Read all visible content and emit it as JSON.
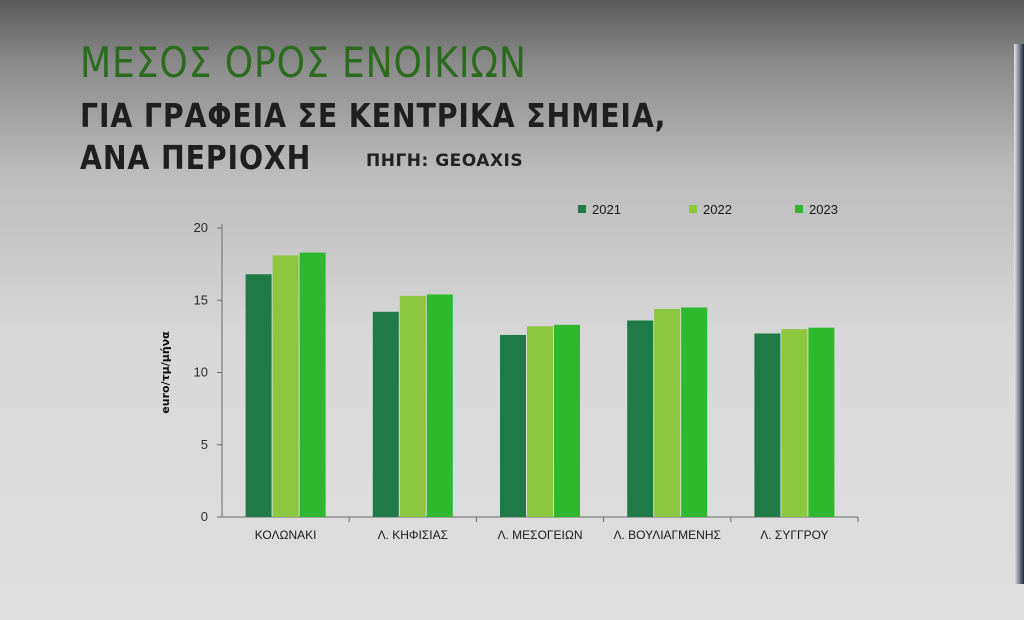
{
  "colors": {
    "c2021": "#1f7a48",
    "c2022": "#8dc63f",
    "c2023": "#2eb82e",
    "title": "#2b6b1e"
  },
  "title_lines": {
    "main": "ΜΕΣΟΣ ΟΡΟΣ ΕΝΟΙΚΙΩΝ",
    "line2": "ΓΙΑ ΓΡΑΦΕΙΑ ΣΕ ΚΕΝΤΡΙΚΑ ΣΗΜΕΙΑ,",
    "line3": "ΑΝΑ ΠΕΡΙΟΧΗ"
  },
  "source": "ΠΗΓΗ: GEOAXIS",
  "chart_data": {
    "type": "bar",
    "title": "ΜΕΣΟΣ ΟΡΟΣ ΕΝΟΙΚΙΩΝ ΓΙΑ ΓΡΑΦΕΙΑ ΣΕ ΚΕΝΤΡΙΚΑ ΣΗΜΕΙΑ, ΑΝΑ ΠΕΡΙΟΧΗ",
    "xlabel": "",
    "ylabel": "euro/τμ/μήνα",
    "ylim": [
      0,
      20
    ],
    "yticks": [
      0,
      5,
      10,
      15,
      20
    ],
    "grid": false,
    "legend_position": "top-right",
    "categories": [
      "ΚΟΛΩΝΑΚΙ",
      "Λ. ΚΗΦΙΣΙΑΣ",
      "Λ. ΜΕΣΟΓΕΙΩΝ",
      "Λ. ΒΟΥΛΙΑΓΜΕΝΗΣ",
      "Λ. ΣΥΓΓΡΟΥ"
    ],
    "series": [
      {
        "name": "2021",
        "values": [
          16.8,
          14.2,
          12.6,
          13.6,
          12.7
        ]
      },
      {
        "name": "2022",
        "values": [
          18.1,
          15.3,
          13.2,
          14.4,
          13.0
        ]
      },
      {
        "name": "2023",
        "values": [
          18.3,
          15.4,
          13.3,
          14.5,
          13.1
        ]
      }
    ]
  }
}
